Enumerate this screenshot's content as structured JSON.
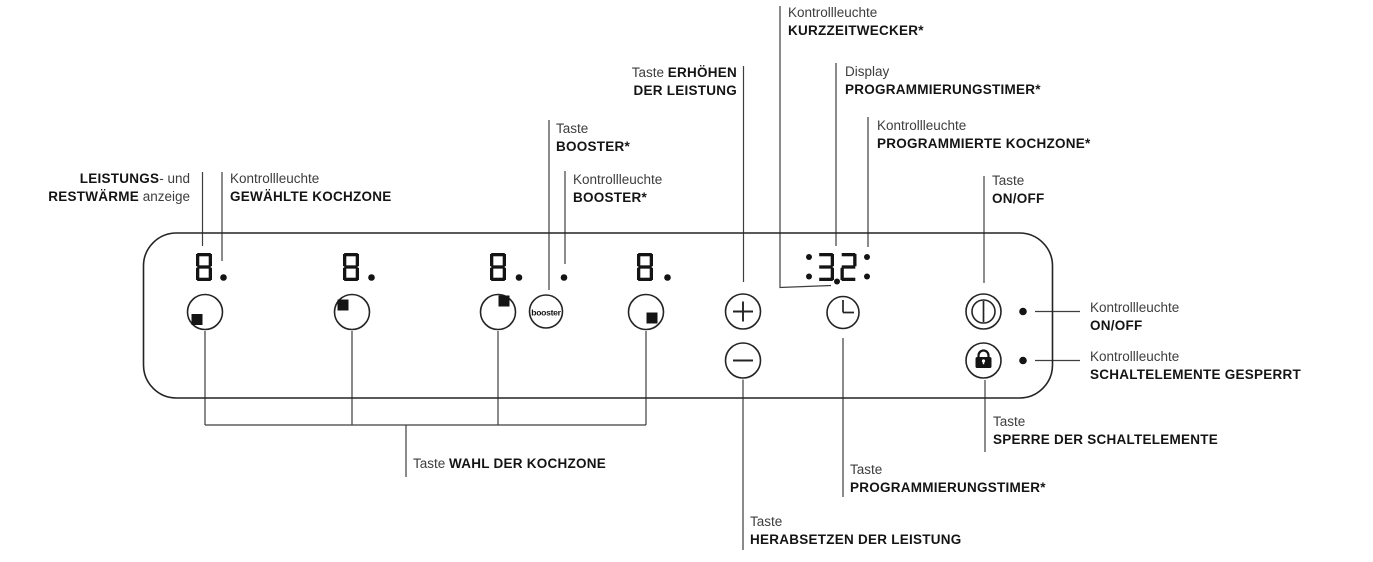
{
  "figure": {
    "type": "appliance-control-panel-diagram",
    "language": "de"
  },
  "colors": {
    "ink": "#141414",
    "leader_line": "#3e3e3e",
    "text_regular": "#3d3d3d",
    "background": "#ffffff"
  },
  "panel": {
    "booster_button_label": "booster",
    "zone_displays": [
      "8",
      "8",
      "8",
      "8"
    ],
    "timer_display": {
      "value": "3.2",
      "leading_colon": true,
      "trailing_colon": true
    }
  },
  "labels": {
    "power_residual": {
      "bold1": "LEISTUNGS",
      "reg1": "- und",
      "bold2": "RESTWÄRME",
      "reg2": " anzeige"
    },
    "selected_zone": {
      "prefix": "Kontrollleuchte",
      "name": "GEWÄHLTE KOCHZONE"
    },
    "increase_power": {
      "prefix": "Taste ",
      "bold1": "ERHÖHEN",
      "bold2": "DER LEISTUNG"
    },
    "booster_key": {
      "prefix": "Taste",
      "name": "BOOSTER*"
    },
    "booster_light": {
      "prefix": "Kontrollleuchte",
      "name": "BOOSTER*"
    },
    "minute_minder": {
      "prefix": "Kontrollleuchte",
      "name": "KURZZEITWECKER*"
    },
    "timer_display_label": {
      "prefix": "Display",
      "name": "PROGRAMMIERUNGSTIMER*"
    },
    "programmed_zone": {
      "prefix": "Kontrollleuchte",
      "name": "PROGRAMMIERTE KOCHZONE*"
    },
    "onoff_key": {
      "prefix": "Taste",
      "name": "ON/OFF"
    },
    "onoff_light": {
      "prefix": "Kontrollleuchte",
      "name": "ON/OFF"
    },
    "lock_light": {
      "prefix": "Kontrollleuchte",
      "name": "SCHALTELEMENTE GESPERRT"
    },
    "lock_key": {
      "prefix": "Taste",
      "name": "SPERRE DER SCHALTELEMENTE"
    },
    "zone_select_key": {
      "prefix": "Taste ",
      "name": "WAHL DER KOCHZONE"
    },
    "timer_key": {
      "prefix": "Taste",
      "name": "PROGRAMMIERUNGSTIMER*"
    },
    "decrease_power": {
      "prefix": "Taste",
      "name": "HERABSETZEN DER LEISTUNG"
    }
  }
}
